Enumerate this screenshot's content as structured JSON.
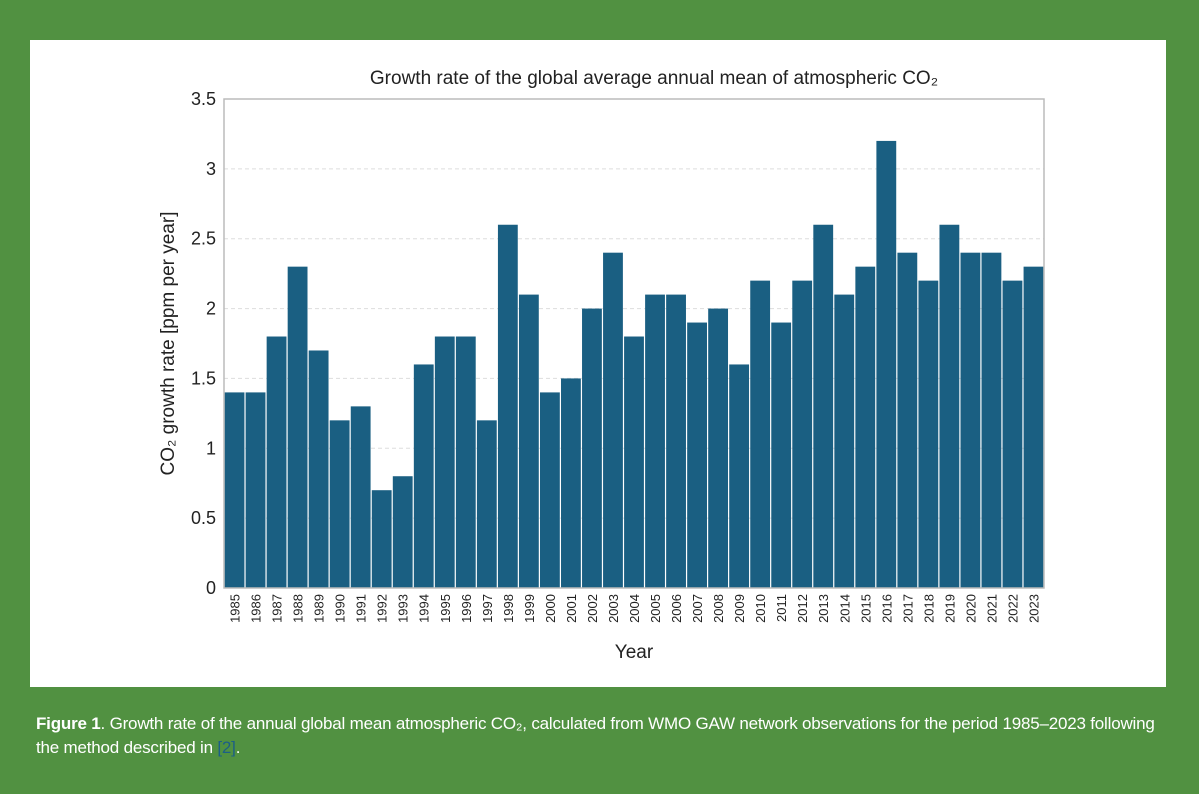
{
  "chart_data": {
    "type": "bar",
    "title": "Growth rate of the global average annual mean of atmospheric CO₂",
    "xlabel": "Year",
    "ylabel": "CO₂ growth rate [ppm per year]",
    "ylim": [
      0,
      3.5
    ],
    "yticks": [
      "0",
      "0.5",
      "1",
      "1.5",
      "2",
      "2.5",
      "3",
      "3.5"
    ],
    "grid": true,
    "bar_color": "#1a5f82",
    "categories": [
      "1985",
      "1986",
      "1987",
      "1988",
      "1989",
      "1990",
      "1991",
      "1992",
      "1993",
      "1994",
      "1995",
      "1996",
      "1997",
      "1998",
      "1999",
      "2000",
      "2001",
      "2002",
      "2003",
      "2004",
      "2005",
      "2006",
      "2007",
      "2008",
      "2009",
      "2010",
      "2011",
      "2012",
      "2013",
      "2014",
      "2015",
      "2016",
      "2017",
      "2018",
      "2019",
      "2020",
      "2021",
      "2022",
      "2023"
    ],
    "values": [
      1.4,
      1.4,
      1.8,
      2.3,
      1.7,
      1.2,
      1.3,
      0.7,
      0.8,
      1.6,
      1.8,
      1.8,
      1.2,
      2.6,
      2.1,
      1.4,
      1.5,
      2.0,
      2.4,
      1.8,
      2.1,
      2.1,
      1.9,
      2.0,
      1.6,
      2.2,
      1.9,
      2.2,
      2.6,
      2.1,
      2.3,
      3.2,
      2.4,
      2.2,
      2.6,
      2.4,
      2.4,
      2.2,
      2.3
    ]
  },
  "caption": {
    "label": "Figure 1",
    "text": ". Growth rate of the annual global mean atmospheric CO₂, calculated from WMO GAW network observations for the period 1985–2023 following the method described in ",
    "ref": "[2]",
    "end": "."
  },
  "colors": {
    "background": "#519141",
    "panel": "#ffffff",
    "link": "#1c5f86"
  }
}
